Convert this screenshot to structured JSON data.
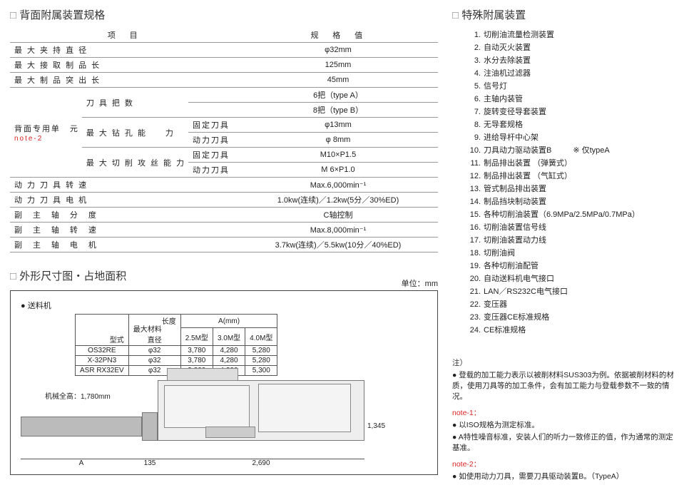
{
  "specs": {
    "title": "背面附属装置规格",
    "header": {
      "c1": "项　目",
      "c2": "规　格　值"
    },
    "group_label": "背面专用单　元",
    "note2": "note-2",
    "rows": [
      {
        "l1": "最 大 夹 持 直 径",
        "v": "φ32mm"
      },
      {
        "l1": "最 大 接 取 制 品 长",
        "v": "125mm"
      },
      {
        "l1": "最 大 制 品 突 出 长",
        "v": "45mm"
      }
    ],
    "tool_count_label": "刀 具 把 数",
    "tool_count_a": "6把（type A）",
    "tool_count_b": "8把（type B）",
    "drill_label": "最 大 钻 孔 能　　力",
    "drill_fixed": "固定刀具",
    "drill_fixed_v": "φ13mm",
    "drill_live": "动力刀具",
    "drill_live_v": "φ 8mm",
    "tap_label": "最 大 切 削 攻 丝 能 力",
    "tap_fixed": "固定刀具",
    "tap_fixed_v": "M10×P1.5",
    "tap_live": "动力刀具",
    "tap_live_v": "M 6×P1.0",
    "rows2": [
      {
        "l": "动 力 刀 具 转 速",
        "v": "Max.6,000min⁻¹"
      },
      {
        "l": "动 力 刀 具 电 机",
        "v": "1.0kw(连续)／1.2kw(5分／30%ED)"
      },
      {
        "l": "副　主　轴　分　度",
        "v": "C轴控制"
      },
      {
        "l": "副　主　轴　转　速",
        "v": "Max.8,000min⁻¹"
      },
      {
        "l": "副　主　轴　电　机",
        "v": "3.7kw(连续)／5.5kw(10分／40%ED)"
      }
    ]
  },
  "dims": {
    "title": "外形尺寸图・占地面积",
    "unit": "单位：mm",
    "feeder_label": "送料机",
    "feed_hdr": {
      "type": "型式",
      "lenhdr": "长度",
      "dia": "最大材料直径",
      "a": "A(mm)",
      "a1": "2.5M型",
      "a2": "3.0M型",
      "a3": "4.0M型"
    },
    "feed_rows": [
      {
        "m": "OS32RE",
        "d": "φ32",
        "a1": "3,780",
        "a2": "4,280",
        "a3": "5,280"
      },
      {
        "m": "X-32PN3",
        "d": "φ32",
        "a1": "3,780",
        "a2": "4,280",
        "a3": "5,280"
      },
      {
        "m": "ASR RX32EV",
        "d": "φ32",
        "a1": "3,800",
        "a2": "4,300",
        "a3": "5,300"
      }
    ],
    "height_label": "机械全高：1,780mm",
    "dim_a": "A",
    "dim_135": "135",
    "dim_2690": "2,690",
    "dim_1345": "1,345"
  },
  "attach": {
    "title": "特殊附属装置",
    "only_a": "※ 仅typeA",
    "items": [
      "切削油流量检测装置",
      "自动灭火装置",
      "水分去除装置",
      "注油机过滤器",
      "信号灯",
      "主轴内装管",
      "旋转变径导套装置",
      "无导套规格",
      "进给导杆中心架",
      "刀具动力驱动装置B",
      "制品排出装置 （弹簧式）",
      "制品排出装置 （气缸式）",
      "管式制品排出装置",
      "制品挡块制动装置",
      "各种切削油装置（6.9MPa/2.5MPa/0.7MPa）",
      "切削油装置信号线",
      "切削油装置动力线",
      "切削油阀",
      "各种切削油配管",
      "自动送料机电气接口",
      "LAN／RS232C电气接口",
      "变压器",
      "变压器CE标准规格",
      "CE标准规格"
    ]
  },
  "notes": {
    "hdr": "注）",
    "p1": "登载的加工能力表示以被削材料SUS303为例。依据被削材料的材质，使用刀具等的加工条件，会有加工能力与登载参数不一致的情况。",
    "n1h": "note-1：",
    "n1a": "以ISO规格为测定标准。",
    "n1b": "A特性噪音标准，安装人们的听力一致修正的值，作为通常的测定基准。",
    "n2h": "note-2：",
    "n2a": "如使用动力刀具，需要刀具驱动装置B。（TypeA）"
  }
}
